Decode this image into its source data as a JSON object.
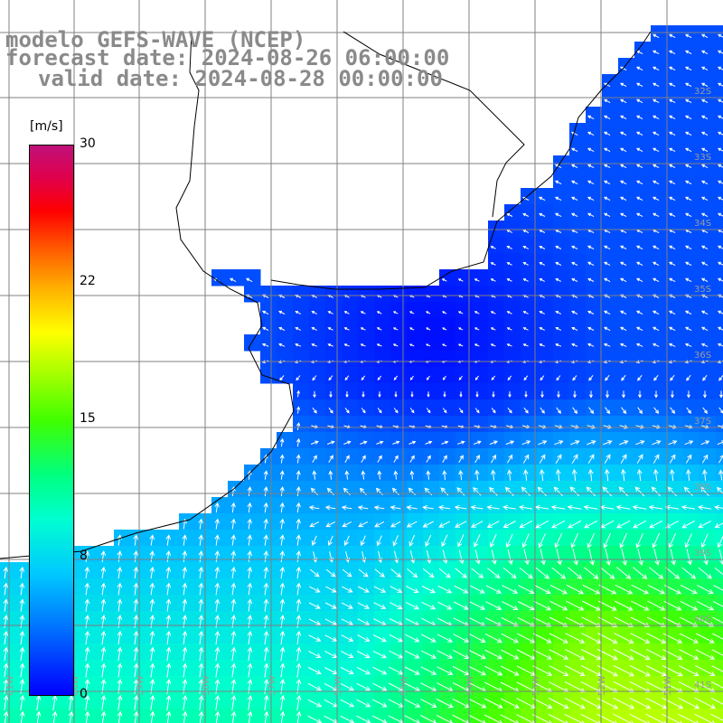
{
  "title": {
    "line1": "modelo GEFS-WAVE (NCEP)",
    "line2": "forecast date: 2024-08-26 06:00:00",
    "line3": "valid date: 2024-08-28 00:00:00"
  },
  "colorbar": {
    "unit": "[m/s]",
    "ticks": [
      "30",
      "22",
      "15",
      "8",
      "0"
    ],
    "min": 0,
    "max": 30
  },
  "lat_labels": [
    "32S",
    "33S",
    "34S",
    "35S",
    "36S",
    "37S",
    "38S",
    "39S",
    "40S",
    "41S"
  ],
  "lon_labels": [
    "61W",
    "60W",
    "59W",
    "58W",
    "57W",
    "56W",
    "55W",
    "54W",
    "53W",
    "52W",
    "51W"
  ],
  "colors": {
    "land": "#ffffff",
    "grid": "#808080",
    "coast": "#000000",
    "arrow": "#ffffff",
    "title": "#8a8a8a"
  }
}
